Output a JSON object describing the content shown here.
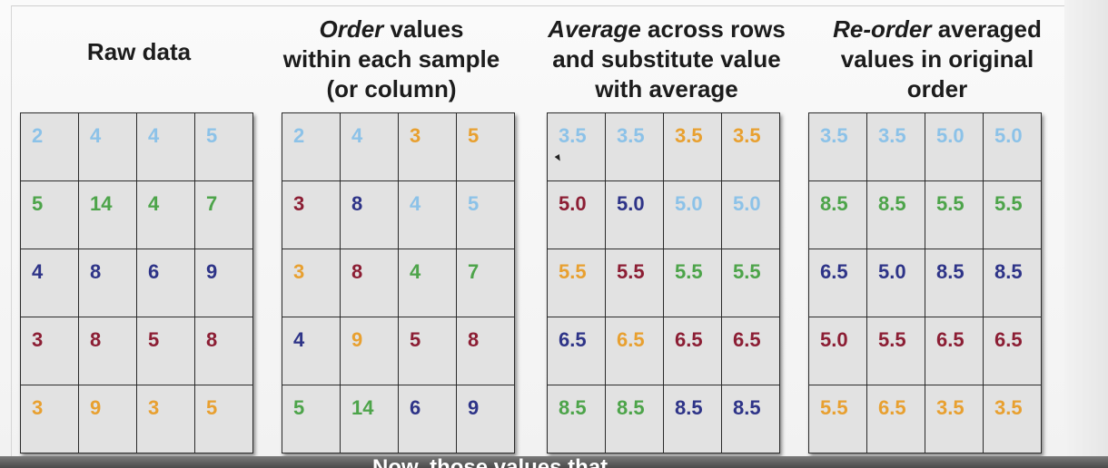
{
  "panels": [
    {
      "heading": [
        {
          "parts": [
            {
              "text": "Raw data",
              "italic": false
            }
          ]
        }
      ],
      "rows": [
        [
          {
            "v": "2",
            "c": "lightblue"
          },
          {
            "v": "4",
            "c": "lightblue"
          },
          {
            "v": "4",
            "c": "lightblue"
          },
          {
            "v": "5",
            "c": "lightblue"
          }
        ],
        [
          {
            "v": "5",
            "c": "green"
          },
          {
            "v": "14",
            "c": "green"
          },
          {
            "v": "4",
            "c": "green"
          },
          {
            "v": "7",
            "c": "green"
          }
        ],
        [
          {
            "v": "4",
            "c": "navy"
          },
          {
            "v": "8",
            "c": "navy"
          },
          {
            "v": "6",
            "c": "navy"
          },
          {
            "v": "9",
            "c": "navy"
          }
        ],
        [
          {
            "v": "3",
            "c": "red"
          },
          {
            "v": "8",
            "c": "red"
          },
          {
            "v": "5",
            "c": "red"
          },
          {
            "v": "8",
            "c": "red"
          }
        ],
        [
          {
            "v": "3",
            "c": "orange"
          },
          {
            "v": "9",
            "c": "orange"
          },
          {
            "v": "3",
            "c": "orange"
          },
          {
            "v": "5",
            "c": "orange"
          }
        ]
      ]
    },
    {
      "heading": [
        {
          "parts": [
            {
              "text": "Order",
              "italic": true
            },
            {
              "text": " values",
              "italic": false
            }
          ]
        },
        {
          "parts": [
            {
              "text": "within each sample",
              "italic": false
            }
          ]
        },
        {
          "parts": [
            {
              "text": "(or column)",
              "italic": false
            }
          ]
        }
      ],
      "rows": [
        [
          {
            "v": "2",
            "c": "lightblue"
          },
          {
            "v": "4",
            "c": "lightblue"
          },
          {
            "v": "3",
            "c": "orange"
          },
          {
            "v": "5",
            "c": "orange"
          }
        ],
        [
          {
            "v": "3",
            "c": "red"
          },
          {
            "v": "8",
            "c": "navy"
          },
          {
            "v": "4",
            "c": "lightblue"
          },
          {
            "v": "5",
            "c": "lightblue"
          }
        ],
        [
          {
            "v": "3",
            "c": "orange"
          },
          {
            "v": "8",
            "c": "red"
          },
          {
            "v": "4",
            "c": "green"
          },
          {
            "v": "7",
            "c": "green"
          }
        ],
        [
          {
            "v": "4",
            "c": "navy"
          },
          {
            "v": "9",
            "c": "orange"
          },
          {
            "v": "5",
            "c": "red"
          },
          {
            "v": "8",
            "c": "red"
          }
        ],
        [
          {
            "v": "5",
            "c": "green"
          },
          {
            "v": "14",
            "c": "green"
          },
          {
            "v": "6",
            "c": "navy"
          },
          {
            "v": "9",
            "c": "navy"
          }
        ]
      ]
    },
    {
      "heading": [
        {
          "parts": [
            {
              "text": "Average",
              "italic": true
            },
            {
              "text": " across rows",
              "italic": false
            }
          ]
        },
        {
          "parts": [
            {
              "text": "and substitute value",
              "italic": false
            }
          ]
        },
        {
          "parts": [
            {
              "text": "with average",
              "italic": false
            }
          ]
        }
      ],
      "rows": [
        [
          {
            "v": "3.5",
            "c": "lightblue"
          },
          {
            "v": "3.5",
            "c": "lightblue"
          },
          {
            "v": "3.5",
            "c": "orange"
          },
          {
            "v": "3.5",
            "c": "orange"
          }
        ],
        [
          {
            "v": "5.0",
            "c": "red"
          },
          {
            "v": "5.0",
            "c": "navy"
          },
          {
            "v": "5.0",
            "c": "lightblue"
          },
          {
            "v": "5.0",
            "c": "lightblue"
          }
        ],
        [
          {
            "v": "5.5",
            "c": "orange"
          },
          {
            "v": "5.5",
            "c": "red"
          },
          {
            "v": "5.5",
            "c": "green"
          },
          {
            "v": "5.5",
            "c": "green"
          }
        ],
        [
          {
            "v": "6.5",
            "c": "navy"
          },
          {
            "v": "6.5",
            "c": "orange"
          },
          {
            "v": "6.5",
            "c": "red"
          },
          {
            "v": "6.5",
            "c": "red"
          }
        ],
        [
          {
            "v": "8.5",
            "c": "green"
          },
          {
            "v": "8.5",
            "c": "green"
          },
          {
            "v": "8.5",
            "c": "navy"
          },
          {
            "v": "8.5",
            "c": "navy"
          }
        ]
      ]
    },
    {
      "heading": [
        {
          "parts": [
            {
              "text": "Re-order",
              "italic": true
            },
            {
              "text": " averaged",
              "italic": false
            }
          ]
        },
        {
          "parts": [
            {
              "text": "values in original",
              "italic": false
            }
          ]
        },
        {
          "parts": [
            {
              "text": "order",
              "italic": false
            }
          ]
        }
      ],
      "rows": [
        [
          {
            "v": "3.5",
            "c": "lightblue"
          },
          {
            "v": "3.5",
            "c": "lightblue"
          },
          {
            "v": "5.0",
            "c": "lightblue"
          },
          {
            "v": "5.0",
            "c": "lightblue"
          }
        ],
        [
          {
            "v": "8.5",
            "c": "green"
          },
          {
            "v": "8.5",
            "c": "green"
          },
          {
            "v": "5.5",
            "c": "green"
          },
          {
            "v": "5.5",
            "c": "green"
          }
        ],
        [
          {
            "v": "6.5",
            "c": "navy"
          },
          {
            "v": "5.0",
            "c": "navy"
          },
          {
            "v": "8.5",
            "c": "navy"
          },
          {
            "v": "8.5",
            "c": "navy"
          }
        ],
        [
          {
            "v": "5.0",
            "c": "red"
          },
          {
            "v": "5.5",
            "c": "red"
          },
          {
            "v": "6.5",
            "c": "red"
          },
          {
            "v": "6.5",
            "c": "red"
          }
        ],
        [
          {
            "v": "5.5",
            "c": "orange"
          },
          {
            "v": "6.5",
            "c": "orange"
          },
          {
            "v": "3.5",
            "c": "orange"
          },
          {
            "v": "3.5",
            "c": "orange"
          }
        ]
      ]
    }
  ],
  "caption": "Now, those values that"
}
